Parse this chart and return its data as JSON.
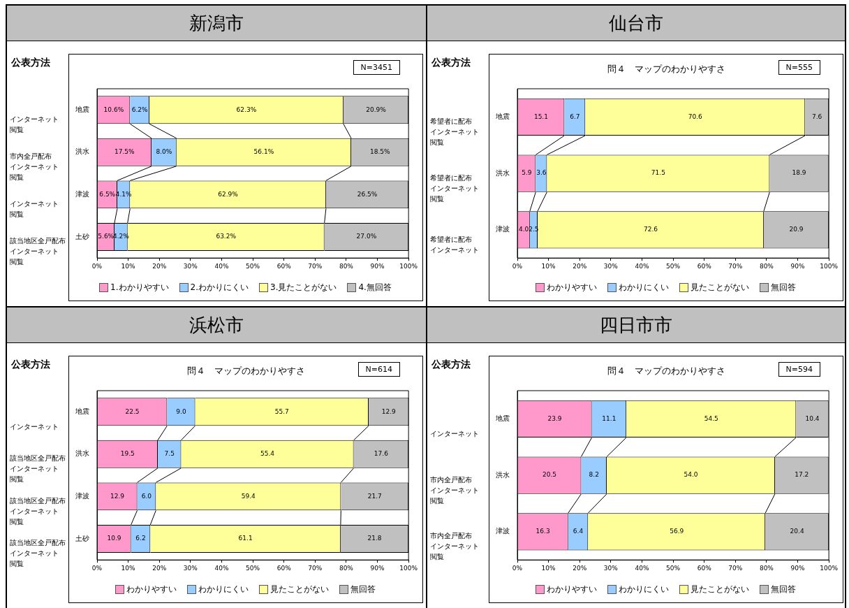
{
  "chart_data": [
    {
      "type": "bar",
      "orientation": "horizontal",
      "stacked": true,
      "title": "新潟市",
      "categories": [
        "地震",
        "洪水",
        "津波",
        "土砂"
      ],
      "series": [
        {
          "name": "1.わかりやすい",
          "color": "#ff99cc",
          "values": [
            10.6,
            17.5,
            6.5,
            5.6
          ],
          "value_labels": [
            "10.6%",
            "17.5%",
            "6.5%",
            "5.6%"
          ]
        },
        {
          "name": "2.わかりにくい",
          "color": "#99ccff",
          "values": [
            6.2,
            8.0,
            4.1,
            4.2
          ],
          "value_labels": [
            "6.2%",
            "8.0%",
            "4.1%",
            "4.2%"
          ]
        },
        {
          "name": "3.見たことがない",
          "color": "#ffff99",
          "values": [
            62.3,
            56.1,
            62.9,
            63.2
          ],
          "value_labels": [
            "62.3%",
            "56.1%",
            "62.9%",
            "63.2%"
          ]
        },
        {
          "name": "4.無回答",
          "color": "#c0c0c0",
          "values": [
            20.9,
            18.5,
            26.5,
            27.0
          ],
          "value_labels": [
            "20.9%",
            "18.5%",
            "26.5%",
            "27.0%"
          ]
        }
      ],
      "xlim": [
        0,
        100
      ],
      "xticks": [
        {
          "value": 0,
          "label": "0%"
        },
        {
          "value": 10,
          "label": "10%"
        },
        {
          "value": 20,
          "label": "20%"
        },
        {
          "value": 30,
          "label": "30%"
        },
        {
          "value": 40,
          "label": "40%"
        },
        {
          "value": 50,
          "label": "50%"
        },
        {
          "value": 60,
          "label": "60%"
        },
        {
          "value": 70,
          "label": "70%"
        },
        {
          "value": 80,
          "label": "80%"
        },
        {
          "value": 90,
          "label": "90%"
        },
        {
          "value": 100,
          "label": "100%"
        }
      ],
      "grid": false,
      "legend": "bottom",
      "annotations": [
        "公表方法",
        "インターネット閲覧",
        "市内全戸配布インターネット閲覧",
        "インターネット閲覧",
        "該当地区全戸配布インターネット閲覧",
        "N=3451"
      ]
    },
    {
      "type": "bar",
      "orientation": "horizontal",
      "stacked": true,
      "title": "仙台市",
      "subtitle": "問４　マップのわかりやすさ",
      "categories": [
        "地震",
        "洪水",
        "津波"
      ],
      "series": [
        {
          "name": "わかりやすい",
          "color": "#ff99cc",
          "values": [
            15.1,
            5.9,
            4.0
          ],
          "value_labels": [
            "15.1",
            "5.9",
            "4.0"
          ]
        },
        {
          "name": "わかりにくい",
          "color": "#99ccff",
          "values": [
            6.7,
            3.6,
            2.5
          ],
          "value_labels": [
            "6.7",
            "3.6",
            "2.5"
          ]
        },
        {
          "name": "見たことがない",
          "color": "#ffff99",
          "values": [
            70.6,
            71.5,
            72.6
          ],
          "value_labels": [
            "70.6",
            "71.5",
            "72.6"
          ]
        },
        {
          "name": "無回答",
          "color": "#c0c0c0",
          "values": [
            7.6,
            18.9,
            20.9
          ],
          "value_labels": [
            "7.6",
            "18.9",
            "20.9"
          ]
        }
      ],
      "xlim": [
        0,
        100
      ],
      "xticks": [
        {
          "value": 0,
          "label": "0%"
        },
        {
          "value": 10,
          "label": "10%"
        },
        {
          "value": 20,
          "label": "20%"
        },
        {
          "value": 30,
          "label": "30%"
        },
        {
          "value": 40,
          "label": "40%"
        },
        {
          "value": 50,
          "label": "50%"
        },
        {
          "value": 60,
          "label": "60%"
        },
        {
          "value": 70,
          "label": "70%"
        },
        {
          "value": 80,
          "label": "80%"
        },
        {
          "value": 90,
          "label": "90%"
        },
        {
          "value": 100,
          "label": "100%"
        }
      ],
      "grid": false,
      "legend": "bottom",
      "annotations": [
        "公表方法",
        "希望者に配布インターネット閲覧",
        "希望者に配布インターネット閲覧",
        "希望者に配布インターネット",
        "N=555"
      ]
    },
    {
      "type": "bar",
      "orientation": "horizontal",
      "stacked": true,
      "title": "浜松市",
      "subtitle": "問４　マップのわかりやすさ",
      "categories": [
        "地震",
        "洪水",
        "津波",
        "土砂"
      ],
      "series": [
        {
          "name": "わかりやすい",
          "color": "#ff99cc",
          "values": [
            22.5,
            19.5,
            12.9,
            10.9
          ],
          "value_labels": [
            "22.5",
            "19.5",
            "12.9",
            "10.9"
          ]
        },
        {
          "name": "わかりにくい",
          "color": "#99ccff",
          "values": [
            9.0,
            7.5,
            6.0,
            6.2
          ],
          "value_labels": [
            "9.0",
            "7.5",
            "6.0",
            "6.2"
          ]
        },
        {
          "name": "見たことがない",
          "color": "#ffff99",
          "values": [
            55.7,
            55.4,
            59.4,
            61.1
          ],
          "value_labels": [
            "55.7",
            "55.4",
            "59.4",
            "61.1"
          ]
        },
        {
          "name": "無回答",
          "color": "#c0c0c0",
          "values": [
            12.9,
            17.6,
            21.7,
            21.8
          ],
          "value_labels": [
            "12.9",
            "17.6",
            "21.7",
            "21.8"
          ]
        }
      ],
      "xlim": [
        0,
        100
      ],
      "xticks": [
        {
          "value": 0,
          "label": "0%"
        },
        {
          "value": 10,
          "label": "10%"
        },
        {
          "value": 20,
          "label": "20%"
        },
        {
          "value": 30,
          "label": "30%"
        },
        {
          "value": 40,
          "label": "40%"
        },
        {
          "value": 50,
          "label": "50%"
        },
        {
          "value": 60,
          "label": "60%"
        },
        {
          "value": 70,
          "label": "70%"
        },
        {
          "value": 80,
          "label": "80%"
        },
        {
          "value": 90,
          "label": "90%"
        },
        {
          "value": 100,
          "label": "100%"
        }
      ],
      "grid": false,
      "legend": "bottom",
      "annotations": [
        "公表方法",
        "インターネット",
        "該当地区全戸配布インターネット閲覧",
        "該当地区全戸配布インターネット閲覧",
        "該当地区全戸配布インターネット閲覧",
        "N=614"
      ]
    },
    {
      "type": "bar",
      "orientation": "horizontal",
      "stacked": true,
      "title": "四日市市",
      "subtitle": "問４　マップのわかりやすさ",
      "categories": [
        "地震",
        "洪水",
        "津波"
      ],
      "series": [
        {
          "name": "わかりやすい",
          "color": "#ff99cc",
          "values": [
            23.9,
            20.5,
            16.3
          ],
          "value_labels": [
            "23.9",
            "20.5",
            "16.3"
          ]
        },
        {
          "name": "わかりにくい",
          "color": "#99ccff",
          "values": [
            11.1,
            8.2,
            6.4
          ],
          "value_labels": [
            "11.1",
            "8.2",
            "6.4"
          ]
        },
        {
          "name": "見たことがない",
          "color": "#ffff99",
          "values": [
            54.5,
            54.0,
            56.9
          ],
          "value_labels": [
            "54.5",
            "54.0",
            "56.9"
          ]
        },
        {
          "name": "無回答",
          "color": "#c0c0c0",
          "values": [
            10.4,
            17.2,
            20.4
          ],
          "value_labels": [
            "10.4",
            "17.2",
            "20.4"
          ]
        }
      ],
      "xlim": [
        0,
        100
      ],
      "xticks": [
        {
          "value": 0,
          "label": "0%"
        },
        {
          "value": 10,
          "label": "10%"
        },
        {
          "value": 20,
          "label": "20%"
        },
        {
          "value": 30,
          "label": "30%"
        },
        {
          "value": 40,
          "label": "40%"
        },
        {
          "value": 50,
          "label": "50%"
        },
        {
          "value": 60,
          "label": "60%"
        },
        {
          "value": 70,
          "label": "70%"
        },
        {
          "value": 80,
          "label": "80%"
        },
        {
          "value": 90,
          "label": "90%"
        },
        {
          "value": 100,
          "label": "100%"
        }
      ],
      "grid": false,
      "legend": "bottom",
      "annotations": [
        "公表方法",
        "インターネット",
        "市内全戸配布インターネット閲覧",
        "市内全戸配布インターネット閲覧",
        "N=594"
      ]
    }
  ]
}
